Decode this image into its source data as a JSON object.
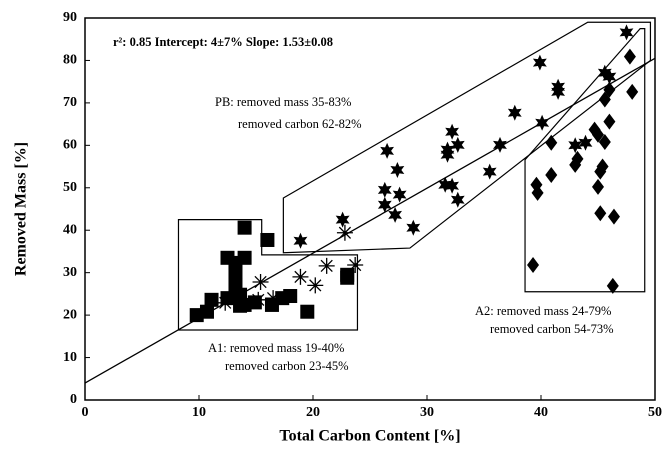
{
  "chart_data": {
    "type": "scatter",
    "x_label": "Total Carbon Content [%]",
    "y_label": "Removed Mass [%]",
    "xlim": [
      0,
      50
    ],
    "ylim": [
      0,
      90
    ],
    "xticks": [
      0,
      10,
      20,
      30,
      40,
      50
    ],
    "yticks": [
      0,
      10,
      20,
      30,
      40,
      50,
      60,
      70,
      80,
      90
    ],
    "grid": false,
    "fit_text": "r²: 0.85  Intercept: 4±7%  Slope: 1.53±0.08",
    "fit_line": {
      "x": [
        0,
        50
      ],
      "y": [
        4,
        80.5
      ],
      "color": "#000000"
    },
    "annotations": [
      "PB: removed mass 35-83%",
      "removed carbon 62-82%",
      "A1: removed mass 19-40%",
      "removed carbon 23-45%",
      "A2: removed mass 24-79%",
      "removed carbon 54-73%"
    ],
    "regions": [
      {
        "x": [
          8.2,
          15.5,
          15.5,
          23.9,
          23.9,
          8.2
        ],
        "y": [
          42.5,
          42.5,
          34.2,
          34.2,
          16.5,
          16.5
        ]
      },
      {
        "x": [
          17.4,
          44.1,
          49.6,
          49.6,
          28.5,
          17.4
        ],
        "y": [
          47.6,
          89,
          89,
          80,
          35.8,
          34.7
        ]
      },
      {
        "x": [
          38.6,
          48.7,
          49.1,
          49.1,
          38.6
        ],
        "y": [
          56.6,
          87.5,
          87.5,
          25.5,
          25.5
        ]
      }
    ],
    "series": [
      {
        "marker": "square",
        "color": "#000000",
        "x": [
          9.8,
          10.7,
          11.1,
          12.5,
          12.5,
          13.2,
          14,
          14,
          16,
          13.2,
          13.2,
          13.6,
          14,
          14.9,
          16.4,
          17.3,
          18,
          19.5,
          23,
          23,
          13.6
        ],
        "values": [
          20,
          20.8,
          23.6,
          24,
          33.5,
          32.3,
          33.5,
          40.6,
          37.7,
          30.2,
          27,
          24.8,
          22.4,
          23,
          22.4,
          24,
          24.5,
          20.8,
          29.5,
          28.8,
          22.2
        ]
      },
      {
        "marker": "asterisk",
        "color": "#000000",
        "x": [
          15.4,
          16.5,
          18.9,
          20.2,
          21.2,
          23.7,
          22.8,
          15.2,
          12.3
        ],
        "values": [
          27.8,
          24,
          29,
          27,
          31.6,
          31.8,
          39.4,
          23.6,
          22.9
        ]
      },
      {
        "marker": "star",
        "color": "#000000",
        "x": [
          18.9,
          22.6,
          26.5,
          26.3,
          26.3,
          27.4,
          27.6,
          27.2,
          28.8,
          31.6,
          32.2,
          32.2,
          32.7,
          31.8,
          31.8,
          32.7,
          35.5,
          36.4,
          37.7,
          39.9,
          40.1,
          41.5,
          41.5,
          45.6,
          46,
          47.5,
          43,
          43.9
        ],
        "values": [
          37.5,
          42.5,
          58.7,
          49.5,
          46,
          54.2,
          48.4,
          43.6,
          40.6,
          50.7,
          50.5,
          63.2,
          60.1,
          59,
          57.8,
          47.2,
          53.8,
          60.1,
          67.7,
          79.5,
          65.3,
          73.8,
          72.6,
          77.1,
          76.2,
          86.6,
          60,
          60.6
        ]
      },
      {
        "marker": "diamond",
        "color": "#000000",
        "x": [
          39.3,
          39.6,
          39.7,
          40.9,
          40.9,
          43.2,
          43,
          44.7,
          45,
          45.4,
          45.6,
          45.2,
          46.4,
          46.3,
          45.6,
          46,
          46,
          47.8,
          48,
          45.2,
          45
        ],
        "values": [
          31.8,
          50.7,
          48.8,
          60.6,
          53,
          56.8,
          55.4,
          63.7,
          50.2,
          55,
          60.8,
          44,
          43.2,
          26.9,
          70.8,
          73.1,
          65.6,
          80.9,
          72.6,
          53.8,
          62.5
        ]
      }
    ]
  }
}
